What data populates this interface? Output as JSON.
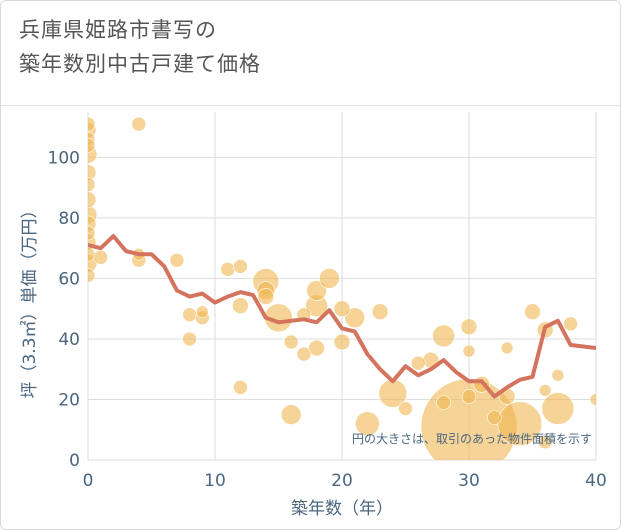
{
  "title_lines": [
    "兵庫県姫路市書写の",
    "築年数別中古戸建て価格"
  ],
  "chart_data": {
    "type": "scatter",
    "title": "兵庫県姫路市書写の築年数別中古戸建て価格",
    "xlabel": "築年数（年）",
    "ylabel": "坪（3.3㎡）単価（万円）",
    "xlim": [
      0,
      40
    ],
    "ylim": [
      0,
      115
    ],
    "xticks": [
      0,
      10,
      20,
      30,
      40
    ],
    "yticks": [
      0,
      20,
      40,
      60,
      80,
      100
    ],
    "grid": true,
    "annotation": "円の大きさは、取引のあった物件面積を示す",
    "colors": {
      "bubble": "#f0b550",
      "line": "#d4735e",
      "text": "#4a6680",
      "grid": "#dddddd"
    },
    "series": [
      {
        "kind": "scatter",
        "points": [
          {
            "x": 0,
            "y": 111,
            "s": 7
          },
          {
            "x": 0,
            "y": 109,
            "s": 8
          },
          {
            "x": 0,
            "y": 106,
            "s": 7
          },
          {
            "x": 0,
            "y": 104,
            "s": 7
          },
          {
            "x": 0,
            "y": 101,
            "s": 9
          },
          {
            "x": 0,
            "y": 95,
            "s": 8
          },
          {
            "x": 0,
            "y": 91,
            "s": 7
          },
          {
            "x": 0,
            "y": 86,
            "s": 8
          },
          {
            "x": 0,
            "y": 81,
            "s": 9
          },
          {
            "x": 0,
            "y": 78,
            "s": 8
          },
          {
            "x": 0,
            "y": 75,
            "s": 7
          },
          {
            "x": 0,
            "y": 72,
            "s": 8
          },
          {
            "x": 0,
            "y": 68,
            "s": 7
          },
          {
            "x": 0,
            "y": 65,
            "s": 9
          },
          {
            "x": 0,
            "y": 61,
            "s": 7
          },
          {
            "x": 1,
            "y": 67,
            "s": 7
          },
          {
            "x": 4,
            "y": 111,
            "s": 7
          },
          {
            "x": 4,
            "y": 66,
            "s": 7
          },
          {
            "x": 4,
            "y": 68,
            "s": 6
          },
          {
            "x": 7,
            "y": 66,
            "s": 7
          },
          {
            "x": 8,
            "y": 48,
            "s": 7
          },
          {
            "x": 8,
            "y": 40,
            "s": 7
          },
          {
            "x": 9,
            "y": 47,
            "s": 7
          },
          {
            "x": 9,
            "y": 49,
            "s": 6
          },
          {
            "x": 11,
            "y": 63,
            "s": 7
          },
          {
            "x": 12,
            "y": 64,
            "s": 7
          },
          {
            "x": 12,
            "y": 51,
            "s": 8
          },
          {
            "x": 12,
            "y": 24,
            "s": 7
          },
          {
            "x": 14,
            "y": 59,
            "s": 13
          },
          {
            "x": 14,
            "y": 56,
            "s": 9
          },
          {
            "x": 14,
            "y": 54,
            "s": 8
          },
          {
            "x": 15,
            "y": 47,
            "s": 14
          },
          {
            "x": 16,
            "y": 39,
            "s": 7
          },
          {
            "x": 16,
            "y": 15,
            "s": 10
          },
          {
            "x": 17,
            "y": 35,
            "s": 7
          },
          {
            "x": 17,
            "y": 48,
            "s": 7
          },
          {
            "x": 18,
            "y": 56,
            "s": 10
          },
          {
            "x": 18,
            "y": 51,
            "s": 11
          },
          {
            "x": 18,
            "y": 37,
            "s": 8
          },
          {
            "x": 19,
            "y": 60,
            "s": 10
          },
          {
            "x": 20,
            "y": 50,
            "s": 8
          },
          {
            "x": 20,
            "y": 39,
            "s": 8
          },
          {
            "x": 21,
            "y": 47,
            "s": 10
          },
          {
            "x": 22,
            "y": 12,
            "s": 12
          },
          {
            "x": 23,
            "y": 49,
            "s": 8
          },
          {
            "x": 24,
            "y": 22,
            "s": 14
          },
          {
            "x": 25,
            "y": 17,
            "s": 7
          },
          {
            "x": 26,
            "y": 32,
            "s": 7
          },
          {
            "x": 27,
            "y": 33,
            "s": 8
          },
          {
            "x": 28,
            "y": 41,
            "s": 11
          },
          {
            "x": 28,
            "y": 19,
            "s": 7
          },
          {
            "x": 30,
            "y": 11,
            "s": 48
          },
          {
            "x": 30,
            "y": 44,
            "s": 8
          },
          {
            "x": 30,
            "y": 36,
            "s": 6
          },
          {
            "x": 30,
            "y": 21,
            "s": 7
          },
          {
            "x": 31,
            "y": 25,
            "s": 8
          },
          {
            "x": 32,
            "y": 14,
            "s": 7
          },
          {
            "x": 33,
            "y": 21,
            "s": 8
          },
          {
            "x": 33,
            "y": 37,
            "s": 6
          },
          {
            "x": 34,
            "y": 12,
            "s": 22
          },
          {
            "x": 35,
            "y": 49,
            "s": 8
          },
          {
            "x": 36,
            "y": 43,
            "s": 8
          },
          {
            "x": 36,
            "y": 23,
            "s": 6
          },
          {
            "x": 36,
            "y": 6,
            "s": 7
          },
          {
            "x": 37,
            "y": 17,
            "s": 16
          },
          {
            "x": 37,
            "y": 28,
            "s": 6
          },
          {
            "x": 38,
            "y": 45,
            "s": 7
          },
          {
            "x": 40,
            "y": 20,
            "s": 6
          }
        ]
      },
      {
        "kind": "line",
        "x": [
          0,
          1,
          2,
          3,
          4,
          5,
          6,
          7,
          8,
          9,
          10,
          11,
          12,
          13,
          14,
          15,
          16,
          17,
          18,
          19,
          20,
          21,
          22,
          23,
          24,
          25,
          26,
          27,
          28,
          29,
          30,
          31,
          32,
          33,
          34,
          35,
          36,
          37,
          38,
          39,
          40
        ],
        "y": [
          71,
          70,
          74,
          69,
          68,
          68,
          64,
          56,
          54,
          55,
          52,
          54,
          55.5,
          54.5,
          47,
          45.5,
          46,
          46.5,
          45.5,
          49.5,
          43.5,
          42.5,
          35,
          30,
          26,
          31,
          28,
          30,
          33,
          29,
          26,
          26,
          21,
          24,
          26.5,
          27.5,
          44,
          46,
          38,
          37.5,
          37
        ]
      }
    ]
  }
}
